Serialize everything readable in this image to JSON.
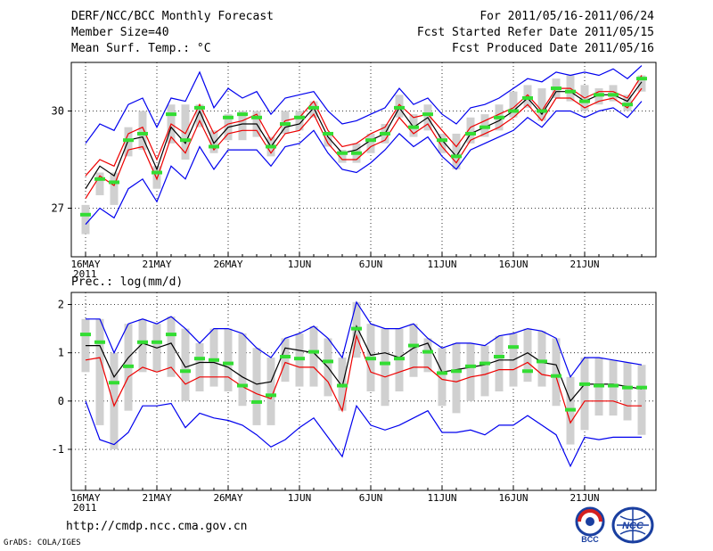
{
  "header": {
    "title": "DERF/NCC/BCC Monthly Forecast",
    "member_size": "Member Size=40",
    "variable": "Mean Surf. Temp.: °C",
    "period": "For 2011/05/16-2011/06/24",
    "fcst_started": "Fcst Started Refer Date 2011/05/15",
    "fcst_produced": "Fcst Produced Date 2011/05/16"
  },
  "footer": {
    "url": "http://cmdp.ncc.cma.gov.cn",
    "grads_credit": "GrADS: COLA/IGES",
    "logo_bcc": "BCC",
    "logo_ncc": "NCC"
  },
  "colors": {
    "envelope": "#0000ee",
    "inner": "#ee0000",
    "mean": "#000000",
    "median": "#33dd33",
    "box": "#d0d0d0",
    "grid": "#000000"
  },
  "chart_data": [
    {
      "type": "line",
      "title": "Mean Surf. Temp.: °C",
      "xlabel": "",
      "ylabel": "",
      "x": [
        "5/16",
        "5/17",
        "5/18",
        "5/19",
        "5/20",
        "5/21",
        "5/22",
        "5/23",
        "5/24",
        "5/25",
        "5/26",
        "5/27",
        "5/28",
        "5/29",
        "5/30",
        "5/31",
        "6/1",
        "6/2",
        "6/3",
        "6/4",
        "6/5",
        "6/6",
        "6/7",
        "6/8",
        "6/9",
        "6/10",
        "6/11",
        "6/12",
        "6/13",
        "6/14",
        "6/15",
        "6/16",
        "6/17",
        "6/18",
        "6/19",
        "6/20",
        "6/21",
        "6/22",
        "6/23",
        "6/24"
      ],
      "x_tick_labels": [
        "16MAY",
        "21MAY",
        "26MAY",
        "1JUN",
        "6JUN",
        "11JUN",
        "16JUN",
        "21JUN"
      ],
      "x_tick_year": "2011",
      "y_ticks": [
        27,
        30
      ],
      "ylim": [
        25.5,
        31.5
      ],
      "series": [
        {
          "name": "upper",
          "values": [
            29.0,
            29.6,
            29.4,
            30.2,
            30.4,
            29.5,
            30.4,
            30.3,
            31.2,
            30.1,
            30.7,
            30.4,
            30.6,
            29.9,
            30.4,
            30.5,
            30.6,
            30.0,
            29.6,
            29.7,
            29.9,
            30.1,
            30.7,
            30.2,
            30.4,
            29.9,
            29.6,
            30.1,
            30.2,
            30.4,
            30.7,
            31.0,
            30.9,
            31.2,
            31.1,
            31.2,
            31.1,
            31.3,
            31.0,
            31.4
          ]
        },
        {
          "name": "inner_upper",
          "values": [
            28.0,
            28.5,
            28.3,
            29.3,
            29.5,
            28.5,
            29.6,
            29.3,
            30.2,
            29.3,
            29.6,
            29.7,
            29.9,
            29.1,
            29.7,
            29.8,
            30.3,
            29.4,
            28.9,
            29.0,
            29.3,
            29.5,
            30.2,
            29.8,
            29.9,
            29.4,
            28.9,
            29.5,
            29.7,
            29.9,
            30.1,
            30.5,
            30.0,
            30.7,
            30.7,
            30.4,
            30.6,
            30.6,
            30.4,
            31.1
          ]
        },
        {
          "name": "mean",
          "values": [
            27.6,
            28.3,
            28.0,
            29.1,
            29.2,
            28.2,
            29.5,
            29.0,
            30.0,
            29.0,
            29.5,
            29.6,
            29.6,
            28.9,
            29.5,
            29.6,
            30.1,
            29.2,
            28.7,
            28.8,
            29.1,
            29.3,
            30.1,
            29.5,
            29.8,
            29.1,
            28.6,
            29.3,
            29.5,
            29.7,
            30.0,
            30.4,
            29.9,
            30.6,
            30.6,
            30.3,
            30.5,
            30.5,
            30.3,
            30.9
          ]
        },
        {
          "name": "inner_lower",
          "values": [
            27.3,
            28.0,
            27.7,
            28.8,
            28.9,
            27.9,
            29.2,
            28.7,
            29.7,
            28.8,
            29.3,
            29.4,
            29.4,
            28.7,
            29.3,
            29.4,
            29.9,
            29.0,
            28.5,
            28.5,
            28.9,
            29.1,
            29.8,
            29.3,
            29.6,
            28.9,
            28.4,
            29.1,
            29.3,
            29.5,
            29.8,
            30.2,
            29.7,
            30.4,
            30.4,
            30.1,
            30.3,
            30.4,
            30.1,
            30.7
          ]
        },
        {
          "name": "lower",
          "values": [
            26.5,
            27.0,
            26.7,
            27.6,
            27.9,
            27.2,
            28.3,
            27.9,
            28.9,
            28.2,
            28.8,
            28.8,
            28.8,
            28.3,
            28.9,
            29.0,
            29.4,
            28.7,
            28.2,
            28.1,
            28.4,
            28.8,
            29.3,
            28.9,
            29.2,
            28.6,
            28.2,
            28.8,
            29.0,
            29.2,
            29.4,
            29.8,
            29.5,
            30.0,
            30.0,
            29.8,
            30.0,
            30.1,
            29.8,
            30.3
          ]
        }
      ],
      "median": [
        26.8,
        27.9,
        27.8,
        29.1,
        29.3,
        28.1,
        29.9,
        29.1,
        30.1,
        28.9,
        29.8,
        29.9,
        29.8,
        28.9,
        29.6,
        29.8,
        30.1,
        29.3,
        28.7,
        28.7,
        29.1,
        29.3,
        30.1,
        29.5,
        29.9,
        29.1,
        28.6,
        29.3,
        29.5,
        29.8,
        30.0,
        30.4,
        30.0,
        30.7,
        30.6,
        30.3,
        30.5,
        30.5,
        30.2,
        31.0
      ],
      "box_low": [
        26.2,
        27.4,
        27.1,
        28.6,
        28.8,
        27.6,
        29.0,
        28.5,
        29.5,
        28.7,
        29.1,
        29.1,
        29.2,
        28.6,
        29.3,
        29.4,
        29.8,
        28.9,
        28.4,
        28.4,
        28.7,
        29.0,
        29.8,
        29.2,
        29.4,
        28.7,
        28.2,
        29.0,
        29.2,
        29.4,
        29.8,
        30.1,
        29.7,
        30.4,
        30.3,
        30.0,
        30.2,
        30.3,
        30.0,
        30.6
      ],
      "box_high": [
        27.1,
        28.1,
        28.1,
        29.5,
        30.0,
        28.3,
        30.2,
        30.2,
        30.2,
        29.4,
        29.9,
        30.0,
        30.0,
        29.2,
        30.0,
        30.0,
        30.3,
        29.3,
        28.8,
        29.0,
        29.3,
        29.6,
        30.5,
        29.9,
        30.2,
        29.3,
        29.3,
        29.8,
        29.9,
        30.2,
        30.6,
        30.8,
        30.7,
        31.0,
        31.1,
        30.8,
        30.7,
        30.8,
        30.5,
        31.1
      ]
    },
    {
      "type": "line",
      "title": "Prec.: log(mm/d)",
      "xlabel": "",
      "ylabel": "",
      "x": [
        "5/16",
        "5/17",
        "5/18",
        "5/19",
        "5/20",
        "5/21",
        "5/22",
        "5/23",
        "5/24",
        "5/25",
        "5/26",
        "5/27",
        "5/28",
        "5/29",
        "5/30",
        "5/31",
        "6/1",
        "6/2",
        "6/3",
        "6/4",
        "6/5",
        "6/6",
        "6/7",
        "6/8",
        "6/9",
        "6/10",
        "6/11",
        "6/12",
        "6/13",
        "6/14",
        "6/15",
        "6/16",
        "6/17",
        "6/18",
        "6/19",
        "6/20",
        "6/21",
        "6/22",
        "6/23",
        "6/24"
      ],
      "x_tick_labels": [
        "16MAY",
        "21MAY",
        "26MAY",
        "1JUN",
        "6JUN",
        "11JUN",
        "16JUN",
        "21JUN"
      ],
      "x_tick_year": "2011",
      "y_ticks": [
        -1,
        0,
        1,
        2
      ],
      "ylim": [
        -1.85,
        2.25
      ],
      "series": [
        {
          "name": "upper",
          "values": [
            1.7,
            1.7,
            1.0,
            1.6,
            1.7,
            1.6,
            1.75,
            1.5,
            1.2,
            1.5,
            1.5,
            1.4,
            1.1,
            0.9,
            1.3,
            1.4,
            1.55,
            1.3,
            0.9,
            2.05,
            1.6,
            1.5,
            1.5,
            1.6,
            1.3,
            1.1,
            1.2,
            1.2,
            1.15,
            1.35,
            1.4,
            1.5,
            1.45,
            1.3,
            0.5,
            0.9,
            0.9,
            0.85,
            0.8,
            0.75
          ]
        },
        {
          "name": "mean",
          "values": [
            1.15,
            1.15,
            0.5,
            0.9,
            1.2,
            1.1,
            1.2,
            0.7,
            0.8,
            0.8,
            0.7,
            0.5,
            0.35,
            0.4,
            1.1,
            1.05,
            1.0,
            0.7,
            0.3,
            1.55,
            0.95,
            1.0,
            0.9,
            1.1,
            1.2,
            0.6,
            0.65,
            0.7,
            0.75,
            0.85,
            0.85,
            1.0,
            0.8,
            0.75,
            0.0,
            0.35,
            0.35,
            0.35,
            0.3,
            0.25
          ]
        },
        {
          "name": "inner",
          "values": [
            0.85,
            0.9,
            -0.1,
            0.5,
            0.7,
            0.6,
            0.7,
            0.35,
            0.5,
            0.5,
            0.5,
            0.3,
            0.15,
            0.05,
            0.8,
            0.7,
            0.7,
            0.4,
            -0.2,
            1.35,
            0.6,
            0.5,
            0.6,
            0.7,
            0.7,
            0.45,
            0.4,
            0.5,
            0.55,
            0.65,
            0.65,
            0.8,
            0.55,
            0.5,
            -0.45,
            0.0,
            0.0,
            0.0,
            -0.1,
            -0.1
          ]
        },
        {
          "name": "lower",
          "values": [
            0.0,
            -0.8,
            -0.9,
            -0.65,
            -0.1,
            -0.1,
            -0.05,
            -0.55,
            -0.25,
            -0.35,
            -0.4,
            -0.5,
            -0.7,
            -0.95,
            -0.8,
            -0.55,
            -0.35,
            -0.75,
            -1.15,
            -0.1,
            -0.5,
            -0.6,
            -0.5,
            -0.35,
            -0.2,
            -0.65,
            -0.65,
            -0.6,
            -0.7,
            -0.5,
            -0.5,
            -0.3,
            -0.5,
            -0.7,
            -1.35,
            -0.75,
            -0.8,
            -0.75,
            -0.75,
            -0.75
          ]
        }
      ],
      "median": [
        1.38,
        1.22,
        0.38,
        0.72,
        1.22,
        1.22,
        1.38,
        0.62,
        0.88,
        0.85,
        0.78,
        0.32,
        -0.02,
        0.12,
        0.92,
        0.88,
        1.02,
        0.82,
        0.32,
        1.5,
        0.88,
        0.78,
        0.88,
        1.15,
        1.02,
        0.58,
        0.62,
        0.72,
        0.78,
        0.92,
        1.12,
        0.62,
        0.82,
        0.52,
        -0.18,
        0.35,
        0.32,
        0.32,
        0.28,
        0.28
      ],
      "box_low": [
        0.6,
        -0.5,
        -1.0,
        -0.2,
        0.6,
        0.6,
        0.5,
        0.0,
        0.2,
        0.3,
        0.2,
        -0.1,
        -0.5,
        -0.5,
        0.4,
        0.3,
        0.3,
        0.1,
        -0.2,
        0.9,
        0.2,
        -0.1,
        0.2,
        0.5,
        0.6,
        -0.1,
        -0.25,
        0.0,
        0.1,
        0.2,
        0.3,
        0.4,
        0.3,
        -0.1,
        -0.9,
        -0.6,
        -0.3,
        -0.3,
        -0.4,
        -0.7
      ]
    }
  ]
}
